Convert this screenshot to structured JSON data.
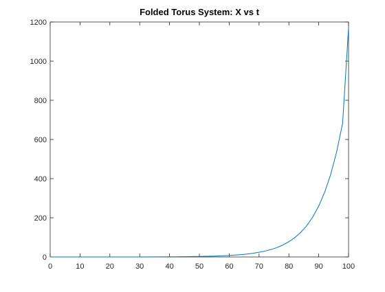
{
  "chart_data": {
    "type": "line",
    "title": "Folded Torus System: X vs t",
    "xlabel": "",
    "ylabel": "",
    "xlim": [
      0,
      100
    ],
    "ylim": [
      0,
      1200
    ],
    "xticks": [
      0,
      10,
      20,
      30,
      40,
      50,
      60,
      70,
      80,
      90,
      100
    ],
    "yticks": [
      0,
      200,
      400,
      600,
      800,
      1000,
      1200
    ],
    "grid": false,
    "colors": {
      "line": "#0072BD",
      "axes": "#262626",
      "background": "#ffffff"
    },
    "series": [
      {
        "x": [
          0,
          10,
          20,
          30,
          40,
          50,
          55,
          60,
          62,
          64,
          66,
          68,
          70,
          72,
          74,
          76,
          78,
          80,
          82,
          84,
          86,
          88,
          90,
          92,
          94,
          96,
          98,
          100
        ],
        "y": [
          0.001,
          0.01,
          0.05,
          0.2,
          0.7,
          2.5,
          4.5,
          7.5,
          9.5,
          12,
          15,
          19,
          24,
          30,
          38,
          48,
          61,
          78,
          99,
          126,
          160,
          204,
          260,
          331,
          421,
          536,
          682,
          1170
        ]
      }
    ]
  }
}
